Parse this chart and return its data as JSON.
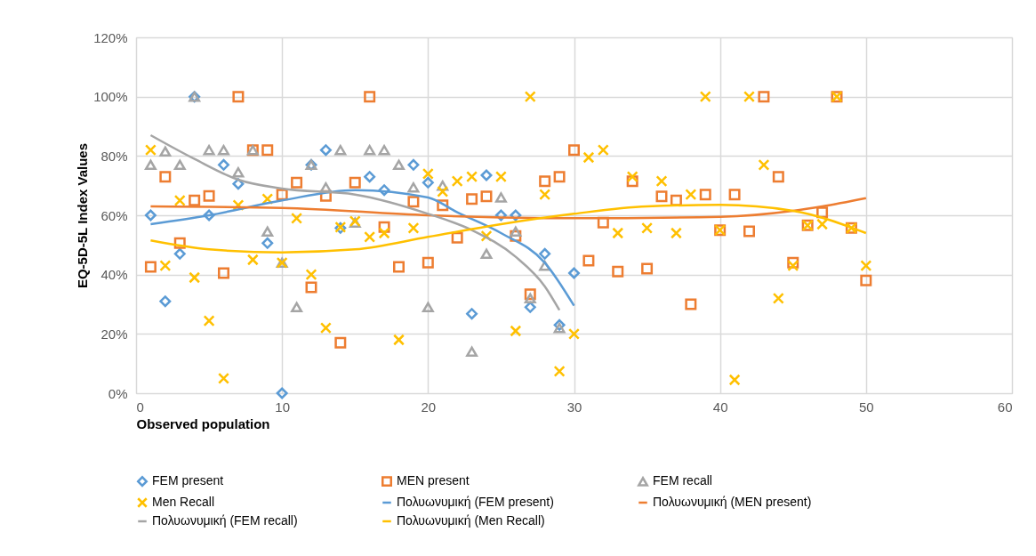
{
  "chart_data": {
    "type": "scatter",
    "xlabel": "Observed population",
    "ylabel": "EQ-5D-5L Index Values",
    "xlim": [
      0,
      60
    ],
    "xticks": [
      0,
      10,
      20,
      30,
      40,
      50,
      60
    ],
    "ylim": [
      0,
      120
    ],
    "yticks": [
      {
        "value": 0,
        "label": "0%"
      },
      {
        "value": 20,
        "label": "20%"
      },
      {
        "value": 40,
        "label": "40%"
      },
      {
        "value": 60,
        "label": "60%"
      },
      {
        "value": 80,
        "label": "80%"
      },
      {
        "value": 100,
        "label": "100%"
      },
      {
        "value": 120,
        "label": "120%"
      }
    ],
    "grid": true,
    "legend": "bottom",
    "series": [
      {
        "name": "FEM present",
        "marker": "diamond",
        "color": "#5b9bd5",
        "x": [
          1,
          2,
          3,
          4,
          5,
          6,
          7,
          9,
          10,
          12,
          13,
          14,
          16,
          17,
          19,
          20,
          23,
          24,
          25,
          26,
          27,
          28,
          29,
          30
        ],
        "values": [
          60,
          31,
          47,
          100,
          60,
          77,
          70.6,
          50.6,
          0,
          77,
          82,
          55.7,
          73,
          68.5,
          77,
          71,
          26.8,
          73.5,
          60,
          60,
          29,
          47,
          23,
          40.5
        ]
      },
      {
        "name": "MEN present",
        "marker": "square",
        "color": "#ed7d31",
        "x": [
          1,
          2,
          3,
          4,
          5,
          6,
          7,
          8,
          9,
          10,
          11,
          12,
          13,
          14,
          15,
          16,
          17,
          18,
          19,
          20,
          21,
          22,
          23,
          24,
          26,
          27,
          28,
          29,
          30,
          31,
          32,
          33,
          34,
          35,
          36,
          37,
          38,
          39,
          40,
          41,
          42,
          43,
          44,
          45,
          46,
          47,
          48,
          49,
          50
        ],
        "values": [
          42.6,
          73,
          50.6,
          65,
          66.5,
          40.5,
          100,
          82,
          82,
          67,
          71,
          35.7,
          66.5,
          17,
          71,
          100,
          56,
          42.6,
          64.6,
          44,
          63.4,
          52.4,
          65.5,
          66.4,
          53,
          33.4,
          71.5,
          73,
          82,
          44.7,
          57.5,
          41,
          71.5,
          42,
          66.4,
          65,
          30,
          67,
          55,
          67,
          54.6,
          100,
          73,
          44,
          56.6,
          61,
          100,
          55.7,
          38
        ]
      },
      {
        "name": "FEM recall",
        "marker": "triangle",
        "color": "#a5a5a5",
        "x": [
          1,
          2,
          3,
          4,
          5,
          6,
          7,
          8,
          9,
          10,
          11,
          12,
          13,
          14,
          15,
          16,
          17,
          18,
          19,
          20,
          21,
          23,
          24,
          25,
          26,
          27,
          28,
          29
        ],
        "values": [
          77,
          81.5,
          77,
          100,
          82,
          82,
          74.5,
          82,
          54.5,
          44,
          29,
          77,
          69.4,
          82,
          57.5,
          82,
          82,
          77,
          69.4,
          29,
          70,
          14,
          47,
          66,
          54.5,
          32,
          43,
          22
        ]
      },
      {
        "name": "Men Recall",
        "marker": "cross",
        "color": "#ffc000",
        "x": [
          1,
          2,
          3,
          4,
          5,
          6,
          7,
          8,
          9,
          10,
          11,
          12,
          13,
          14,
          15,
          16,
          17,
          18,
          19,
          20,
          21,
          22,
          23,
          24,
          25,
          26,
          27,
          28,
          29,
          30,
          31,
          32,
          33,
          34,
          35,
          36,
          37,
          38,
          39,
          40,
          41,
          42,
          43,
          44,
          45,
          46,
          47,
          48,
          49,
          50
        ],
        "values": [
          82,
          43,
          65,
          39,
          24.4,
          5,
          63.4,
          45,
          65.5,
          44,
          59,
          40,
          22,
          56,
          58,
          52.7,
          54,
          18,
          55.7,
          74,
          68,
          71.5,
          73,
          53,
          73,
          21,
          100,
          67,
          7.4,
          20,
          79.5,
          82,
          54,
          73,
          55.7,
          71.5,
          54,
          67,
          100,
          55,
          4.5,
          100,
          77,
          32,
          43,
          56.6,
          57,
          100,
          55.7,
          43
        ]
      },
      {
        "name": "Πολυωνυμική (FEM present)",
        "type": "line",
        "marker": "none",
        "color": "#5b9bd5",
        "x": [
          1,
          5,
          10,
          15,
          20,
          22,
          25,
          28,
          30
        ],
        "values": [
          57,
          60,
          65,
          68.5,
          66,
          61,
          54,
          44,
          29.5
        ]
      },
      {
        "name": "Πολυωνυμική (MEN present)",
        "type": "line",
        "marker": "none",
        "color": "#ed7d31",
        "x": [
          1,
          10,
          20,
          30,
          40,
          45,
          47,
          50
        ],
        "values": [
          63,
          62.5,
          60,
          59,
          59.5,
          61.5,
          63,
          65.8
        ]
      },
      {
        "name": "Πολυωνυμική (FEM recall)",
        "type": "line",
        "marker": "none",
        "color": "#a5a5a5",
        "x": [
          1,
          4,
          7,
          10,
          15,
          20,
          23,
          26,
          28,
          29
        ],
        "values": [
          87,
          79,
          72,
          69,
          67,
          60.5,
          55,
          46,
          36,
          28
        ]
      },
      {
        "name": "Πολυωνυμική (Men Recall)",
        "type": "line",
        "marker": "none",
        "color": "#ffc000",
        "x": [
          1,
          5,
          10,
          15,
          20,
          25,
          30,
          35,
          40,
          45,
          50
        ],
        "values": [
          51.5,
          48.5,
          47.5,
          48.5,
          52.7,
          57,
          60.5,
          63,
          63.5,
          61.5,
          54
        ]
      }
    ]
  }
}
